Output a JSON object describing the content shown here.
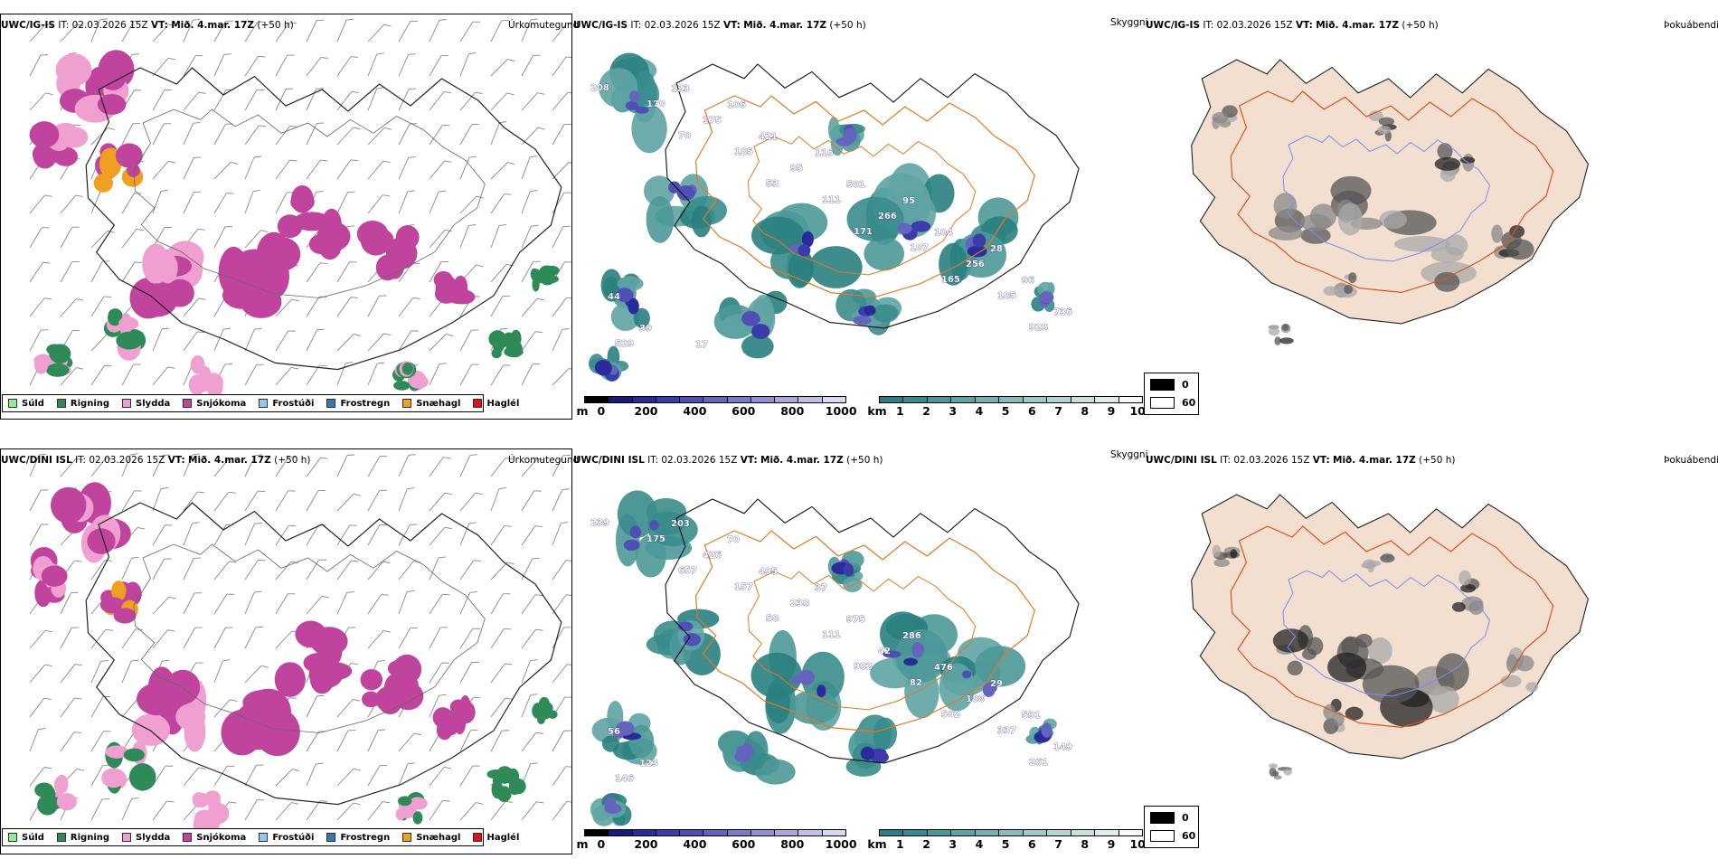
{
  "rows": [
    {
      "model": "UWC/IG-IS",
      "it_label": "IT:",
      "it_value": "02.03.2026 15Z",
      "vt_label": "VT:",
      "vt_value": "Mið. 4.mar. 17Z",
      "lead": "(+50 h)",
      "precip_title": "Úrkomutegund",
      "cloud_title": "Skyggni",
      "fog_title": "Þokuábendi",
      "cloud_labels": [
        "208",
        "70",
        "53",
        "171",
        "165",
        "928",
        "170",
        "185",
        "111",
        "107",
        "185",
        "529",
        "175",
        "95",
        "266",
        "256",
        "736",
        "123",
        "421",
        "501",
        "104",
        "96",
        "39",
        "106",
        "116",
        "95",
        "28",
        "44",
        "17"
      ]
    },
    {
      "model": "UWC/DINI ISL",
      "it_label": "IT:",
      "it_value": "02.03.2026 15Z",
      "vt_label": "VT:",
      "vt_value": "Mið. 4.mar. 17Z",
      "lead": "(+50 h)",
      "precip_title": "Úrkomutegund",
      "cloud_title": "Skyggni",
      "fog_title": "Þokuábendi",
      "cloud_labels": [
        "239",
        "657",
        "58",
        "982",
        "502",
        "261",
        "175",
        "157",
        "111",
        "82",
        "337",
        "146",
        "426",
        "238",
        "42",
        "188",
        "149",
        "203",
        "495",
        "975",
        "476",
        "591",
        "123",
        "70",
        "37",
        "286",
        "29",
        "56"
      ]
    }
  ],
  "precip_legend": [
    {
      "label": "Súld",
      "color": "#90ee90"
    },
    {
      "label": "Rigning",
      "color": "#2e8b57"
    },
    {
      "label": "Slydda",
      "color": "#f0a0d0"
    },
    {
      "label": "Snjókoma",
      "color": "#c0449e"
    },
    {
      "label": "Frostúði",
      "color": "#90c8f0"
    },
    {
      "label": "Frostregn",
      "color": "#2e7bb8"
    },
    {
      "label": "Snæhagl",
      "color": "#f0a020"
    },
    {
      "label": "Haglél",
      "color": "#e01010"
    }
  ],
  "cloud_base_scale": {
    "unit": "m",
    "ticks": [
      "0",
      "200",
      "400",
      "600",
      "800",
      "1000"
    ],
    "colors": [
      "#000000",
      "#1a1a7a",
      "#2a2a9a",
      "#3b3bab",
      "#4f4fb5",
      "#6464bf",
      "#7a7ac8",
      "#9090d2",
      "#a8a8dc",
      "#c0c0e6",
      "#d8d8f0"
    ]
  },
  "visibility_scale": {
    "unit": "km",
    "ticks": [
      "1",
      "2",
      "3",
      "4",
      "5",
      "6",
      "7",
      "8",
      "9",
      "10"
    ],
    "colors": [
      "#2a8080",
      "#3a8c8c",
      "#4c9898",
      "#5fa4a4",
      "#73b0b0",
      "#88bcbc",
      "#9ec8c8",
      "#b4d4d4",
      "#cae0e0",
      "#e0ecec",
      "#f4f9f9"
    ]
  },
  "fog_legend": [
    {
      "label": "0",
      "color": "#000000"
    },
    {
      "label": "60",
      "color": "#ffffff"
    }
  ]
}
